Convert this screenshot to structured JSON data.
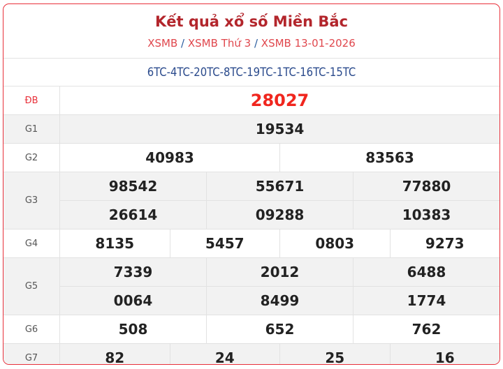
{
  "header": {
    "title": "Kết quả xổ số Miền Bắc",
    "breadcrumb": [
      "XSMB",
      "XSMB Thứ 3",
      "XSMB 13-01-2026"
    ],
    "separator": "/"
  },
  "codes": "6TC-4TC-20TC-8TC-19TC-1TC-16TC-15TC",
  "colors": {
    "border": "#e8303a",
    "title": "#b3262c",
    "special": "#f0261e",
    "code": "#2a4a8c"
  },
  "prizes": [
    {
      "label": "ĐB",
      "rows": [
        [
          "28027"
        ]
      ]
    },
    {
      "label": "G1",
      "rows": [
        [
          "19534"
        ]
      ]
    },
    {
      "label": "G2",
      "rows": [
        [
          "40983",
          "83563"
        ]
      ]
    },
    {
      "label": "G3",
      "rows": [
        [
          "98542",
          "55671",
          "77880"
        ],
        [
          "26614",
          "09288",
          "10383"
        ]
      ]
    },
    {
      "label": "G4",
      "rows": [
        [
          "8135",
          "5457",
          "0803",
          "9273"
        ]
      ]
    },
    {
      "label": "G5",
      "rows": [
        [
          "7339",
          "2012",
          "6488"
        ],
        [
          "0064",
          "8499",
          "1774"
        ]
      ]
    },
    {
      "label": "G6",
      "rows": [
        [
          "508",
          "652",
          "762"
        ]
      ]
    },
    {
      "label": "G7",
      "rows": [
        [
          "82",
          "24",
          "25",
          "16"
        ]
      ]
    }
  ]
}
